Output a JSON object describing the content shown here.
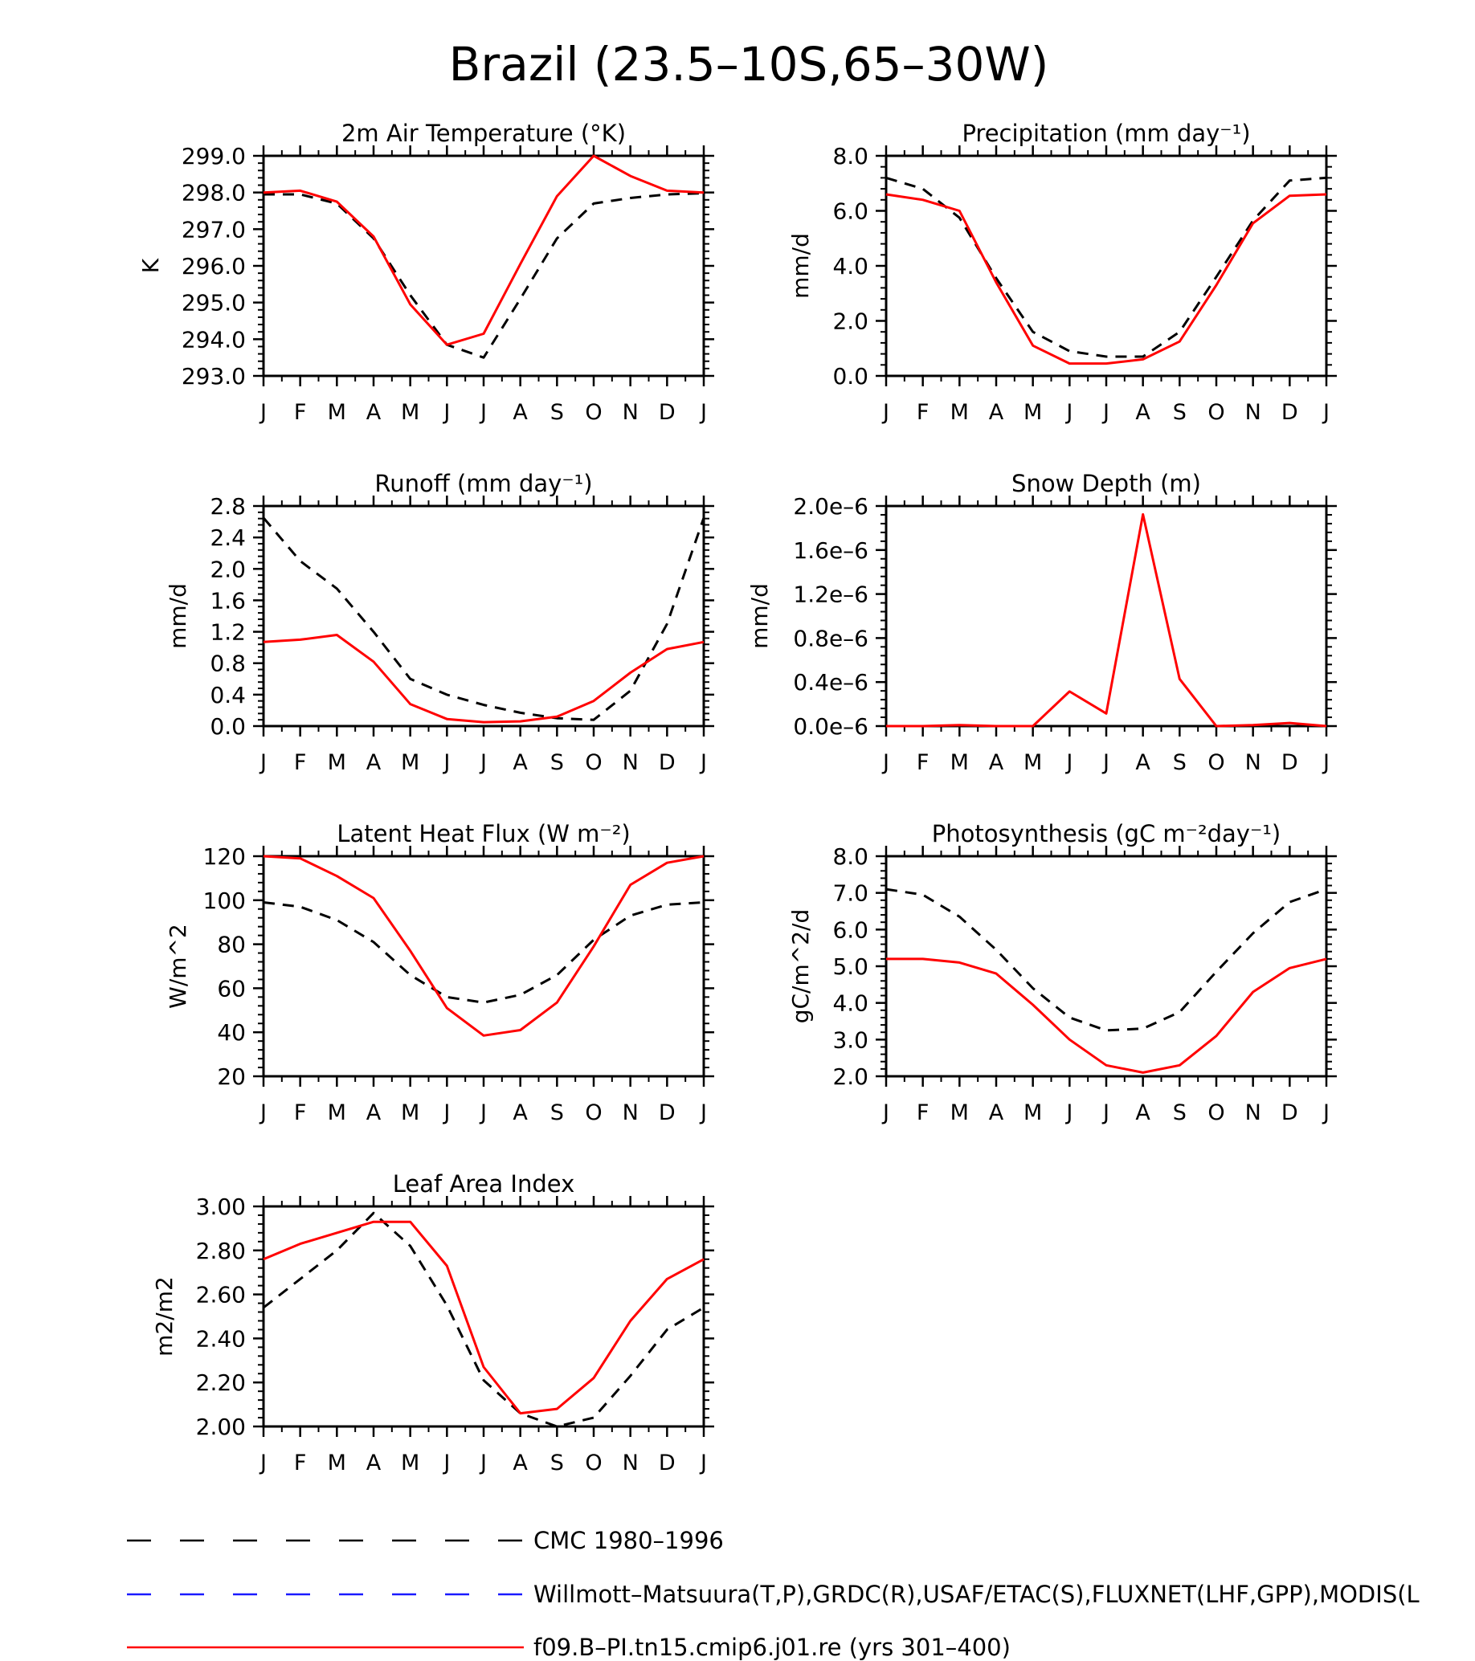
{
  "figure": {
    "title": "Brazil (23.5–10S,65–30W)"
  },
  "months": [
    "J",
    "F",
    "M",
    "A",
    "M",
    "J",
    "J",
    "A",
    "S",
    "O",
    "N",
    "D",
    "J"
  ],
  "legend": {
    "entries": [
      {
        "label": "CMC 1980–1996",
        "color": "#000000",
        "style": "dashed"
      },
      {
        "label": "Willmott–Matsuura(T,P),GRDC(R),USAF/ETAC(S),FLUXNET(LHF,GPP),MODIS(L",
        "color": "#1a1aff",
        "style": "dashed"
      },
      {
        "label": "f09.B–PI.tn15.cmip6.j01.re (yrs 301–400)",
        "color": "#ff0000",
        "style": "solid"
      }
    ]
  },
  "chart_data": [
    {
      "type": "line",
      "title": "2m Air Temperature (°K)",
      "ylabel": "K",
      "ylim": [
        293.0,
        299.0
      ],
      "yticks": [
        "293.0",
        "294.0",
        "295.0",
        "296.0",
        "297.0",
        "298.0",
        "299.0"
      ],
      "x": [
        "J",
        "F",
        "M",
        "A",
        "M",
        "J",
        "J",
        "A",
        "S",
        "O",
        "N",
        "D",
        "J"
      ],
      "series": [
        {
          "name": "CMC 1980–1996",
          "color": "#000000",
          "dash": true,
          "values": [
            297.95,
            297.95,
            297.7,
            296.75,
            295.2,
            293.85,
            293.5,
            295.1,
            296.75,
            297.7,
            297.85,
            297.95,
            297.98
          ]
        },
        {
          "name": "f09.B–PI.tn15.cmip6.j01.re (yrs 301–400)",
          "color": "#ff0000",
          "dash": false,
          "values": [
            298.0,
            298.05,
            297.75,
            296.8,
            294.95,
            293.85,
            294.15,
            296.05,
            297.9,
            299.0,
            298.45,
            298.05,
            298.0
          ]
        }
      ]
    },
    {
      "type": "line",
      "title": "Precipitation (mm day⁻¹)",
      "ylabel": "mm/d",
      "ylim": [
        0.0,
        8.0
      ],
      "yticks": [
        "0.0",
        "2.0",
        "4.0",
        "6.0",
        "8.0"
      ],
      "x": [
        "J",
        "F",
        "M",
        "A",
        "M",
        "J",
        "J",
        "A",
        "S",
        "O",
        "N",
        "D",
        "J"
      ],
      "series": [
        {
          "name": "CMC 1980–1996",
          "color": "#000000",
          "dash": true,
          "values": [
            7.2,
            6.8,
            5.75,
            3.55,
            1.6,
            0.9,
            0.7,
            0.7,
            1.6,
            3.6,
            5.65,
            7.1,
            7.2
          ]
        },
        {
          "name": "f09.B–PI.tn15.cmip6.j01.re (yrs 301–400)",
          "color": "#ff0000",
          "dash": false,
          "values": [
            6.6,
            6.4,
            6.0,
            3.4,
            1.1,
            0.45,
            0.45,
            0.6,
            1.25,
            3.3,
            5.55,
            6.55,
            6.6
          ]
        }
      ]
    },
    {
      "type": "line",
      "title": "Runoff (mm day⁻¹)",
      "ylabel": "mm/d",
      "ylim": [
        0.0,
        2.8
      ],
      "yticks": [
        "0.0",
        "0.4",
        "0.8",
        "1.2",
        "1.6",
        "2.0",
        "2.4",
        "2.8"
      ],
      "x": [
        "J",
        "F",
        "M",
        "A",
        "M",
        "J",
        "J",
        "A",
        "S",
        "O",
        "N",
        "D",
        "J"
      ],
      "series": [
        {
          "name": "CMC 1980–1996",
          "color": "#000000",
          "dash": true,
          "values": [
            2.65,
            2.1,
            1.75,
            1.2,
            0.6,
            0.4,
            0.27,
            0.17,
            0.1,
            0.08,
            0.45,
            1.3,
            2.65
          ]
        },
        {
          "name": "f09.B–PI.tn15.cmip6.j01.re (yrs 301–400)",
          "color": "#ff0000",
          "dash": false,
          "values": [
            1.07,
            1.1,
            1.16,
            0.82,
            0.28,
            0.09,
            0.05,
            0.06,
            0.12,
            0.32,
            0.68,
            0.98,
            1.07
          ]
        }
      ]
    },
    {
      "type": "line",
      "title": "Snow Depth (m)",
      "ylabel": "mm/d",
      "ylim": [
        0.0,
        2.1e-06
      ],
      "yticks": [
        "0.0e–6",
        "0.4e–6",
        "0.8e–6",
        "1.2e–6",
        "1.6e–6",
        "2.0e–6"
      ],
      "x": [
        "J",
        "F",
        "M",
        "A",
        "M",
        "J",
        "J",
        "A",
        "S",
        "O",
        "N",
        "D",
        "J"
      ],
      "series": [
        {
          "name": "CMC 1980–1996",
          "color": "#000000",
          "dash": true,
          "values": [
            0,
            0,
            0,
            0,
            0,
            0,
            0,
            0,
            0,
            0,
            0,
            0,
            0
          ]
        },
        {
          "name": "f09.B–PI.tn15.cmip6.j01.re (yrs 301–400)",
          "color": "#ff0000",
          "dash": false,
          "values": [
            0,
            0,
            1e-08,
            0,
            0,
            3.3e-07,
            1.2e-07,
            2.02e-06,
            4.5e-07,
            0,
            1e-08,
            3e-08,
            0
          ]
        }
      ]
    },
    {
      "type": "line",
      "title": "Latent Heat Flux (W m⁻²)",
      "ylabel": "W/m^2",
      "ylim": [
        20,
        120
      ],
      "yticks": [
        "20",
        "40",
        "60",
        "80",
        "100",
        "120"
      ],
      "x": [
        "J",
        "F",
        "M",
        "A",
        "M",
        "J",
        "J",
        "A",
        "S",
        "O",
        "N",
        "D",
        "J"
      ],
      "series": [
        {
          "name": "CMC 1980–1996",
          "color": "#000000",
          "dash": true,
          "values": [
            99,
            97,
            91,
            81,
            66,
            56,
            53.5,
            57,
            66,
            82,
            93,
            98,
            99
          ]
        },
        {
          "name": "f09.B–PI.tn15.cmip6.j01.re (yrs 301–400)",
          "color": "#ff0000",
          "dash": false,
          "values": [
            120,
            119,
            111,
            101,
            77,
            51,
            38.5,
            41,
            53.5,
            79,
            107,
            117,
            120
          ]
        }
      ]
    },
    {
      "type": "line",
      "title": "Photosynthesis (gC m⁻²day⁻¹)",
      "ylabel": "gC/m^2/d",
      "ylim": [
        2.0,
        8.0
      ],
      "yticks": [
        "2.0",
        "3.0",
        "4.0",
        "5.0",
        "6.0",
        "7.0",
        "8.0"
      ],
      "x": [
        "J",
        "F",
        "M",
        "A",
        "M",
        "J",
        "J",
        "A",
        "S",
        "O",
        "N",
        "D",
        "J"
      ],
      "series": [
        {
          "name": "CMC 1980–1996",
          "color": "#000000",
          "dash": true,
          "values": [
            7.1,
            6.95,
            6.35,
            5.45,
            4.4,
            3.6,
            3.25,
            3.3,
            3.75,
            4.85,
            5.9,
            6.75,
            7.1
          ]
        },
        {
          "name": "f09.B–PI.tn15.cmip6.j01.re (yrs 301–400)",
          "color": "#ff0000",
          "dash": false,
          "values": [
            5.2,
            5.2,
            5.1,
            4.8,
            3.95,
            3.0,
            2.3,
            2.1,
            2.3,
            3.1,
            4.3,
            4.95,
            5.2
          ]
        }
      ]
    },
    {
      "type": "line",
      "title": "Leaf Area Index",
      "ylabel": "m2/m2",
      "ylim": [
        2.0,
        3.0
      ],
      "yticks": [
        "2.00",
        "2.20",
        "2.40",
        "2.60",
        "2.80",
        "3.00"
      ],
      "x": [
        "J",
        "F",
        "M",
        "A",
        "M",
        "J",
        "J",
        "A",
        "S",
        "O",
        "N",
        "D",
        "J"
      ],
      "series": [
        {
          "name": "CMC 1980–1996",
          "color": "#000000",
          "dash": true,
          "values": [
            2.54,
            2.67,
            2.8,
            2.97,
            2.82,
            2.55,
            2.21,
            2.06,
            2.0,
            2.04,
            2.23,
            2.44,
            2.54
          ]
        },
        {
          "name": "f09.B–PI.tn15.cmip6.j01.re (yrs 301–400)",
          "color": "#ff0000",
          "dash": false,
          "values": [
            2.76,
            2.83,
            2.88,
            2.93,
            2.93,
            2.73,
            2.27,
            2.06,
            2.08,
            2.22,
            2.48,
            2.67,
            2.76
          ]
        }
      ]
    }
  ]
}
